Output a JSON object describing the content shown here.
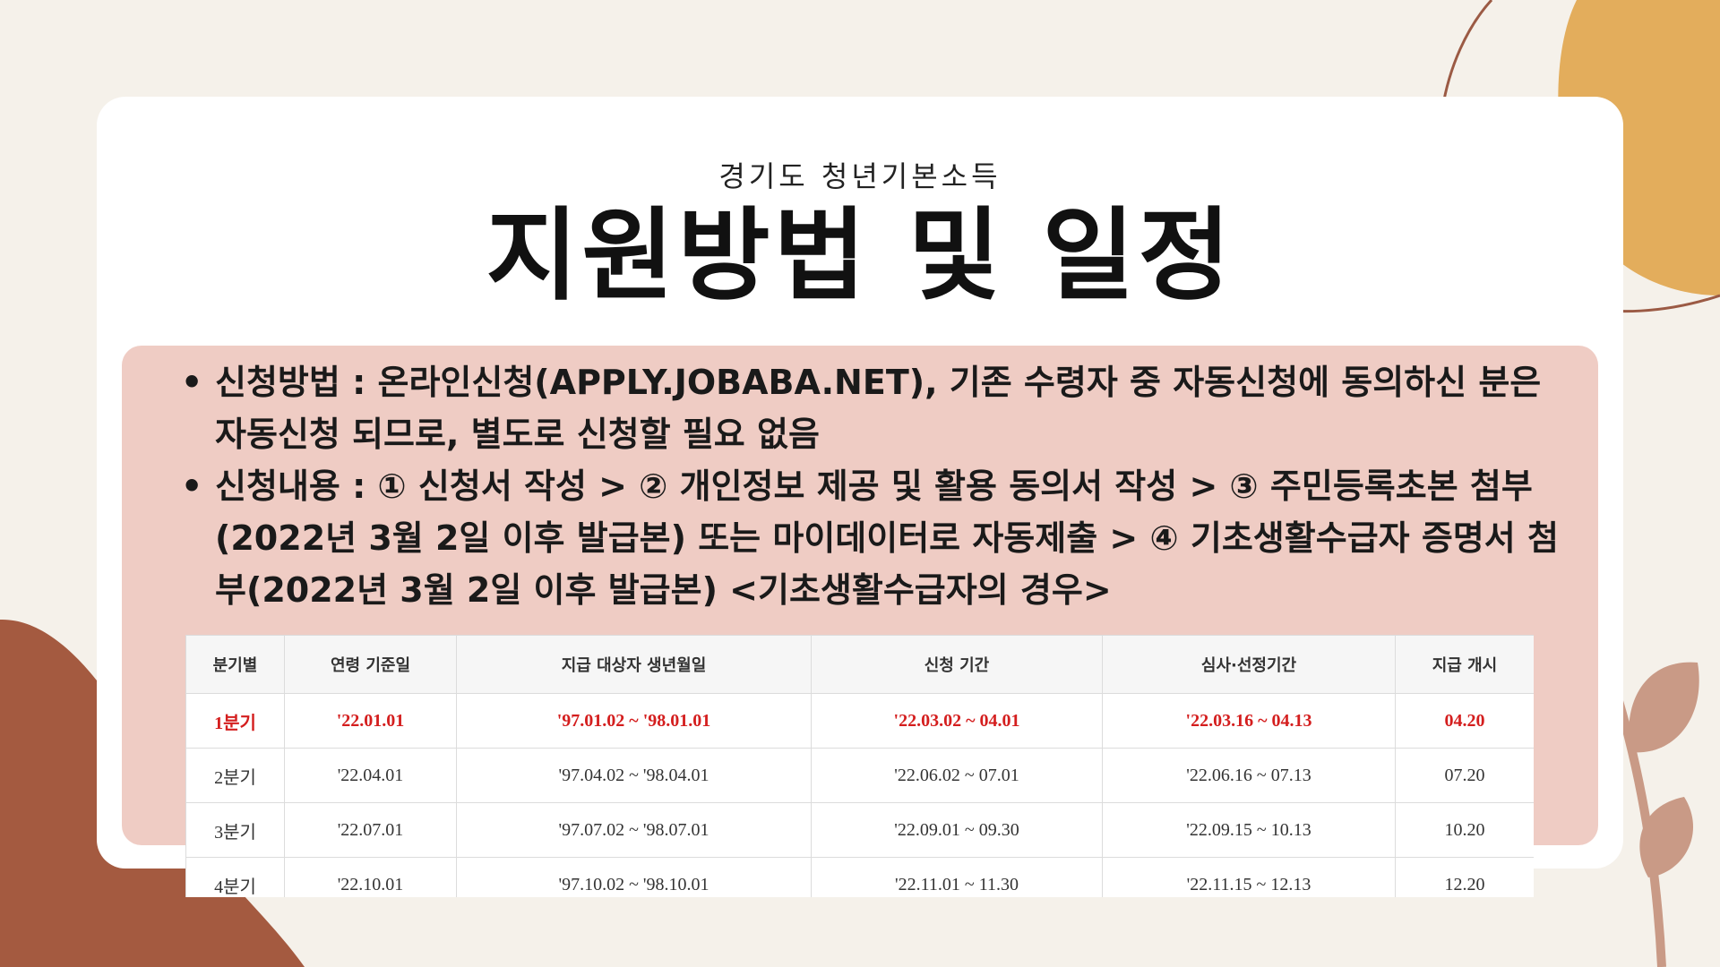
{
  "header": {
    "subtitle": "경기도 청년기본소득",
    "title": "지원방법 및 일정"
  },
  "bullets": [
    {
      "line1": "신청방법 : 온라인신청(APPLY.JOBABA.NET), 기존 수령자 중 자동신청에 동의하신 분은",
      "line2": "자동신청 되므로, 별도로 신청할 필요 없음"
    },
    {
      "line1": "신청내용 : ① 신청서 작성 > ② 개인정보 제공 및 활용 동의서 작성 > ③ 주민등록초본 첨부",
      "line2": "(2022년 3월 2일 이후 발급본) 또는 마이데이터로 자동제출 > ④ 기초생활수급자 증명서 첨",
      "line3": "부(2022년 3월 2일 이후 발급본) <기초생활수급자의 경우>"
    }
  ],
  "bullet_symbol": "•",
  "table": {
    "headers": [
      "분기별",
      "연령 기준일",
      "지급 대상자 생년월일",
      "신청 기간",
      "심사·선정기간",
      "지급 개시"
    ],
    "rows": [
      [
        "1분기",
        "'22.01.01",
        "'97.01.02 ~ '98.01.01",
        "'22.03.02 ~ 04.01",
        "'22.03.16 ~ 04.13",
        "04.20"
      ],
      [
        "2분기",
        "'22.04.01",
        "'97.04.02 ~ '98.04.01",
        "'22.06.02 ~ 07.01",
        "'22.06.16 ~ 07.13",
        "07.20"
      ],
      [
        "3분기",
        "'22.07.01",
        "'97.07.02 ~ '98.07.01",
        "'22.09.01 ~ 09.30",
        "'22.09.15 ~ 10.13",
        "10.20"
      ],
      [
        "4분기",
        "'22.10.01",
        "'97.10.02 ~ '98.10.01",
        "'22.11.01 ~ 11.30",
        "'22.11.15 ~ 12.13",
        "12.20"
      ]
    ]
  },
  "colors": {
    "background": "#f5f1ea",
    "card": "#ffffff",
    "panel": "#efccc4",
    "highlight_text": "#d41e1e",
    "deco_orange": "#e3ad5c",
    "deco_rust": "#a45a40",
    "deco_leaf": "#c99a86"
  }
}
